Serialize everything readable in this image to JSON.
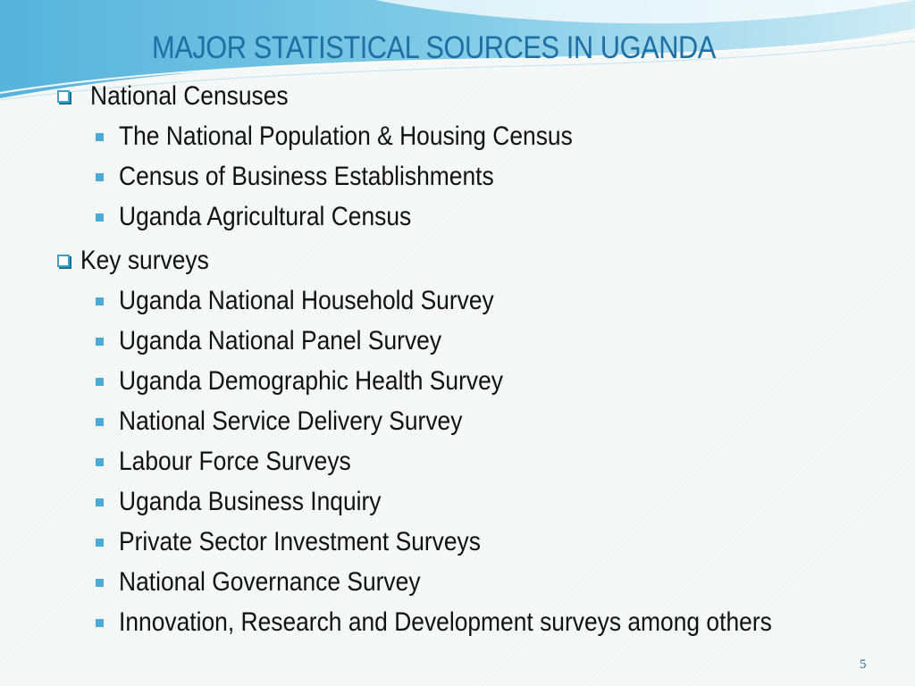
{
  "slide": {
    "title": "MAJOR STATISTICAL SOURCES IN UGANDA",
    "page_number": "5"
  },
  "sections": [
    {
      "heading": "National Censuses",
      "items": [
        "The National Population  & Housing Census",
        "Census of Business Establishments",
        "Uganda Agricultural Census"
      ]
    },
    {
      "heading": "Key surveys",
      "items": [
        "Uganda National Household Survey",
        "Uganda National Panel Survey",
        "Uganda Demographic Health Survey",
        "National Service Delivery Survey",
        "Labour Force Surveys",
        "Uganda Business Inquiry",
        "Private Sector Investment Surveys",
        "National Governance Survey",
        "Innovation, Research and Development surveys among others"
      ]
    }
  ],
  "icons": {
    "heading_bullet": "hollow-square-icon",
    "item_bullet": "filled-square-icon"
  },
  "colors": {
    "title": "#1e6fa3",
    "bullet": "#4aaad8",
    "wave": "#5fb8de"
  }
}
